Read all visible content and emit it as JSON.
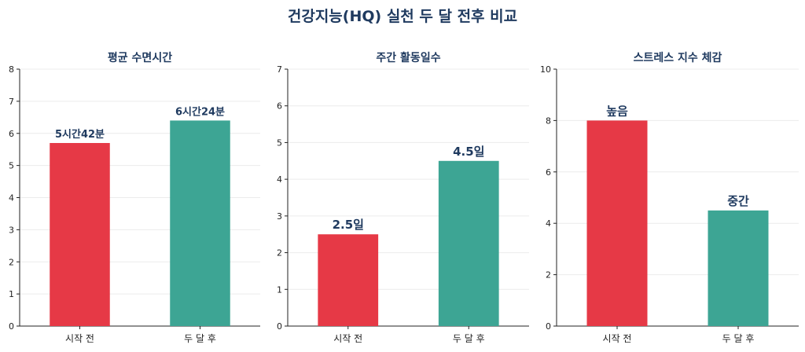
{
  "title": "건강지능(HQ) 실천 두 달 전후 비교",
  "colors": {
    "before": "#e63946",
    "after": "#3da594",
    "title": "#1f3a5f"
  },
  "chart_data": [
    {
      "type": "bar",
      "title": "평균 수면시간",
      "categories": [
        "시작 전",
        "두 달 후"
      ],
      "values": [
        5.7,
        6.4
      ],
      "data_labels": [
        "5시간42분",
        "6시간24분"
      ],
      "ylim": [
        0,
        8
      ],
      "yticks": [
        0,
        1,
        2,
        3,
        4,
        5,
        6,
        7,
        8
      ],
      "ytick_labels": [
        "0",
        "1",
        "2",
        "3",
        "4",
        "5",
        "6",
        "7",
        "8"
      ],
      "grid": true
    },
    {
      "type": "bar",
      "title": "주간 활동일수",
      "categories": [
        "시작 전",
        "두 달 후"
      ],
      "values": [
        2.5,
        4.5
      ],
      "data_labels": [
        "2.5일",
        "4.5일"
      ],
      "ylim": [
        0,
        7
      ],
      "yticks": [
        0,
        1,
        2,
        3,
        4,
        5,
        6,
        7
      ],
      "ytick_labels": [
        "0",
        "1",
        "2",
        "3",
        "4",
        "5",
        "6",
        "7"
      ],
      "grid": true
    },
    {
      "type": "bar",
      "title": "스트레스 지수 체감",
      "categories": [
        "시작 전",
        "두 달 후"
      ],
      "values": [
        8,
        4.5
      ],
      "data_labels": [
        "높음",
        "중간"
      ],
      "ylim": [
        0,
        10
      ],
      "yticks": [
        0,
        2,
        4,
        6,
        8,
        10
      ],
      "ytick_labels": [
        "0",
        "2",
        "4",
        "6",
        "8",
        "10"
      ],
      "grid": true
    }
  ]
}
